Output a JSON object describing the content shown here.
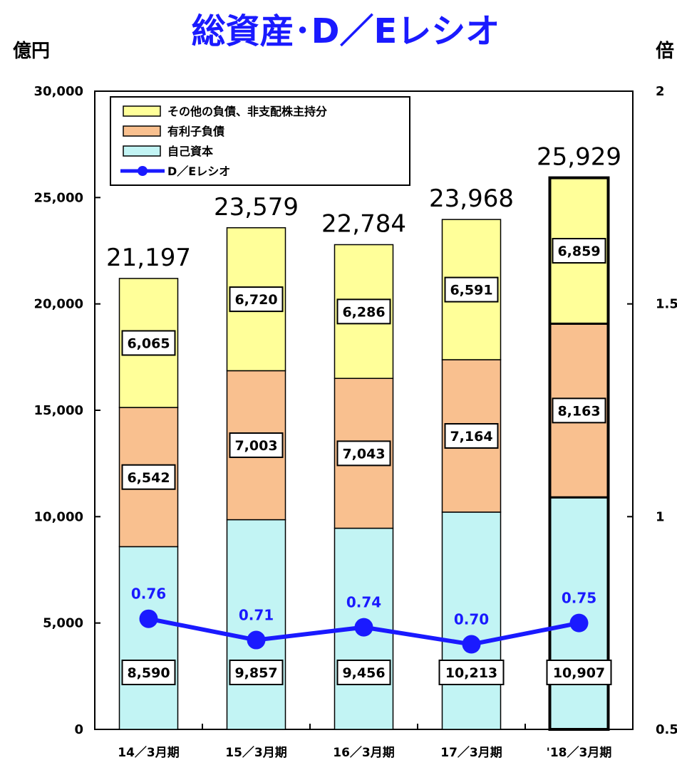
{
  "title": "総資産･D／Eレシオ",
  "left_unit": "億円",
  "right_unit": "倍",
  "colors": {
    "other": "#ffff99",
    "debt": "#f9c08f",
    "equity": "#c2f4f4",
    "line": "#1a1aff",
    "title": "#1a1aff"
  },
  "chart_data": {
    "type": "bar",
    "stacked": true,
    "categories": [
      "14／3月期",
      "15／3月期",
      "16／3月期",
      "17／3月期",
      "'18／3月期"
    ],
    "series": [
      {
        "name": "自己資本",
        "key": "equity",
        "values": [
          8590,
          9857,
          9456,
          10213,
          10907
        ]
      },
      {
        "name": "有利子負債",
        "key": "debt",
        "values": [
          6542,
          7003,
          7043,
          7164,
          8163
        ]
      },
      {
        "name": "その他の負債、非支配株主持分",
        "key": "other",
        "values": [
          6065,
          6720,
          6286,
          6591,
          6859
        ]
      }
    ],
    "segment_labels": {
      "equity": [
        "8,590",
        "9,857",
        "9,456",
        "10,213",
        "10,907"
      ],
      "debt": [
        "6,542",
        "7,003",
        "7,043",
        "7,164",
        "8,163"
      ],
      "other": [
        "6,065",
        "6,720",
        "6,286",
        "6,591",
        "6,859"
      ]
    },
    "totals": [
      21197,
      23579,
      22784,
      23968,
      25929
    ],
    "total_labels": [
      "21,197",
      "23,579",
      "22,784",
      "23,968",
      "25,929"
    ],
    "line_series": {
      "name": "D／Eレシオ",
      "axis": "right",
      "values": [
        0.76,
        0.71,
        0.74,
        0.7,
        0.75
      ],
      "labels": [
        "0.76",
        "0.71",
        "0.74",
        "0.70",
        "0.75"
      ]
    },
    "ylim": [
      0,
      30000
    ],
    "yticks": [
      0,
      5000,
      10000,
      15000,
      20000,
      25000,
      30000
    ],
    "ytick_labels": [
      "0",
      "5,000",
      "10,000",
      "15,000",
      "20,000",
      "25,000",
      "30,000"
    ],
    "y2lim": [
      0.5,
      2
    ],
    "y2ticks": [
      0.5,
      1,
      1.5,
      2
    ],
    "y2tick_labels": [
      "0.5",
      "1",
      "1.5",
      "2"
    ],
    "highlight_category_index": 4,
    "grid": false,
    "legend": {
      "placement": "top-left",
      "items": [
        {
          "label": "その他の負債、非支配株主持分",
          "key": "other",
          "kind": "box"
        },
        {
          "label": "有利子負債",
          "key": "debt",
          "kind": "box"
        },
        {
          "label": "自己資本",
          "key": "equity",
          "kind": "box"
        },
        {
          "label": "D／Eレシオ",
          "key": "line",
          "kind": "line"
        }
      ]
    }
  }
}
